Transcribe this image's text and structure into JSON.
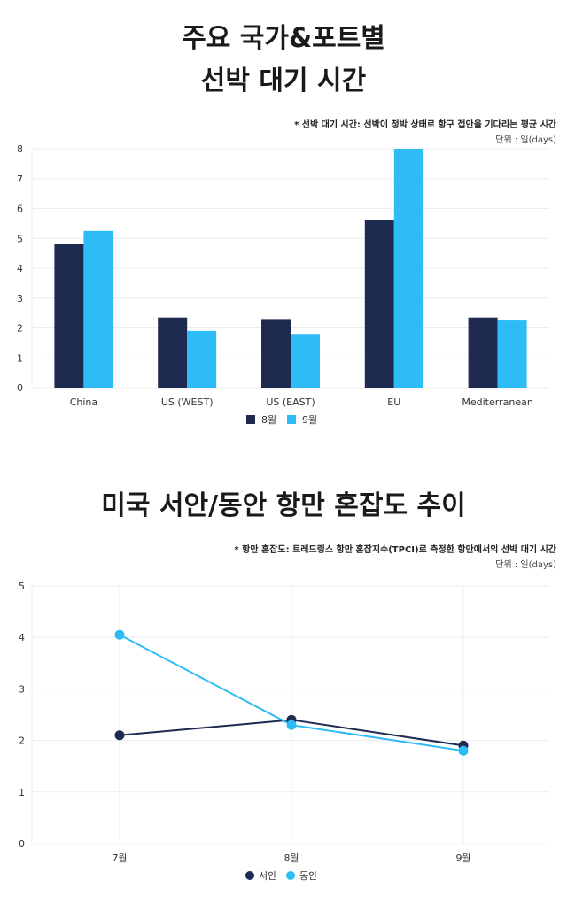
{
  "section1": {
    "title_line1": "주요 국가&포트별",
    "title_line2": "선박 대기 시간",
    "note": "* 선박 대기 시간: 선박이 정박 상태로 항구 접안을 기다리는 평균 시간",
    "unit": "단위 : 일(days)"
  },
  "section2": {
    "title": "미국 서안/동안 항만 혼잡도 추이",
    "note": "* 항만 혼잡도: 트레드링스 항만 혼잡지수(TPCI)로 측정한 항만에서의 선박 대기 시간",
    "unit": "단위 : 일(days)"
  },
  "colors": {
    "dark": "#1f2a50",
    "light": "#2ebcf7"
  },
  "chart_data": [
    {
      "type": "bar",
      "categories": [
        "China",
        "US (WEST)",
        "US (EAST)",
        "EU",
        "Mediterranean"
      ],
      "series": [
        {
          "name": "8월",
          "values": [
            4.8,
            2.35,
            2.3,
            5.6,
            2.35
          ]
        },
        {
          "name": "9월",
          "values": [
            5.25,
            1.9,
            1.8,
            8.0,
            2.25
          ]
        }
      ],
      "ylim": [
        0,
        8
      ],
      "yticks": [
        0,
        1,
        2,
        3,
        4,
        5,
        6,
        7,
        8
      ],
      "legend": "bottom",
      "grid": true
    },
    {
      "type": "line",
      "x": [
        "7월",
        "8월",
        "9월"
      ],
      "series": [
        {
          "name": "서안",
          "values": [
            2.1,
            2.4,
            1.9
          ]
        },
        {
          "name": "동안",
          "values": [
            4.05,
            2.3,
            1.8
          ]
        }
      ],
      "ylim": [
        0,
        5
      ],
      "yticks": [
        0,
        1,
        2,
        3,
        4,
        5
      ],
      "legend": "bottom",
      "grid": true
    }
  ]
}
